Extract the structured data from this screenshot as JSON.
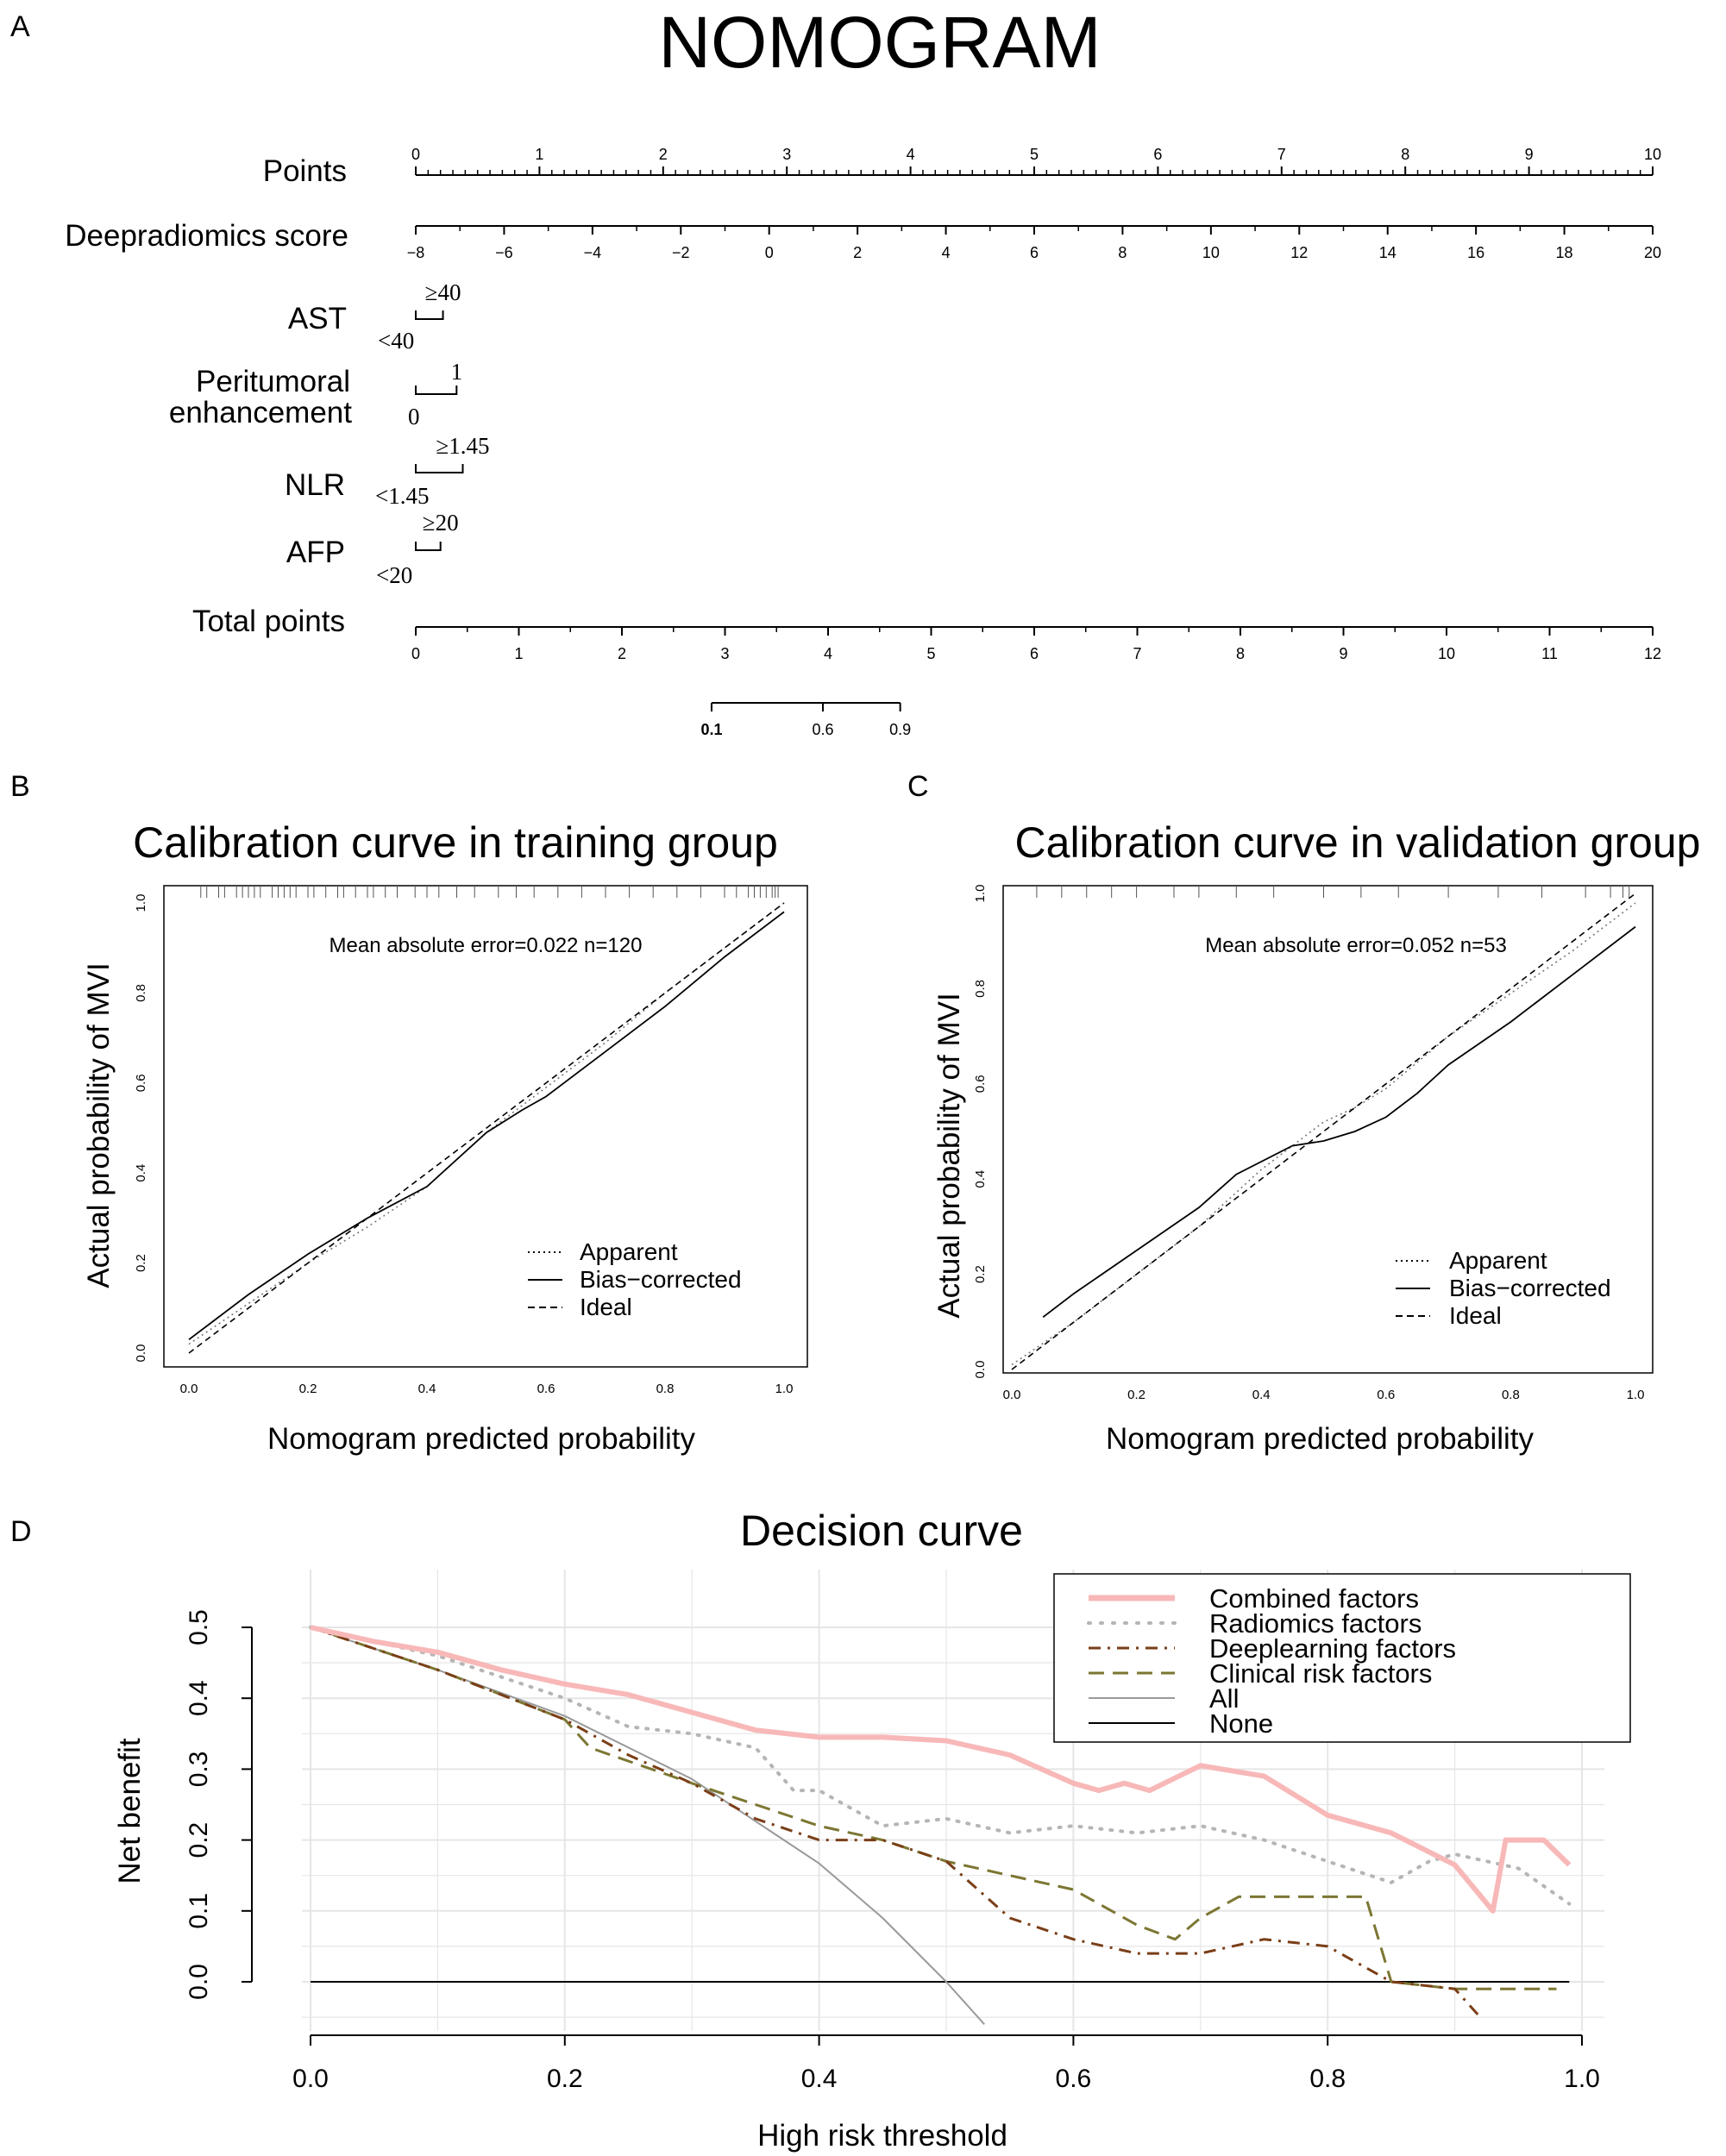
{
  "panel_labels": {
    "a": "A",
    "b": "B",
    "c": "C",
    "d": "D"
  },
  "nomogram": {
    "title": "NOMOGRAM",
    "rows": {
      "points": {
        "label": "Points",
        "min": 0,
        "max": 10,
        "ticks": [
          "0",
          "1",
          "2",
          "3",
          "4",
          "5",
          "6",
          "7",
          "8",
          "9",
          "10"
        ]
      },
      "score": {
        "label": "Deepradiomics score",
        "min": -8,
        "max": 20,
        "ticks": [
          "−8",
          "−6",
          "−4",
          "−2",
          "0",
          "2",
          "4",
          "6",
          "8",
          "10",
          "12",
          "14",
          "16",
          "18",
          "20"
        ]
      },
      "ast": {
        "label": "AST",
        "low": "<40",
        "high": "≥40",
        "points": 0.22
      },
      "peri": {
        "label_line1": "Peritumoral",
        "label_line2": "enhancement",
        "low": "0",
        "high": "1",
        "points": 0.33
      },
      "nlr": {
        "label": "NLR",
        "low": "<1.45",
        "high": "≥1.45",
        "points": 0.38
      },
      "afp": {
        "label": "AFP",
        "low": "<20",
        "high": "≥20",
        "points": 0.2
      },
      "total": {
        "label": "Total points",
        "min": 0,
        "max": 12,
        "ticks": [
          "0",
          "1",
          "2",
          "3",
          "4",
          "5",
          "6",
          "7",
          "8",
          "9",
          "10",
          "11",
          "12"
        ]
      },
      "prob": {
        "ticks": [
          "0.1",
          "0.6",
          "0.9"
        ],
        "total_points": [
          2.87,
          3.95,
          4.7
        ]
      }
    }
  },
  "chart_data": [
    {
      "type": "line",
      "title": "Calibration curve in training group",
      "xlabel": "Nomogram predicted probability",
      "ylabel": "Actual probability of MVI",
      "xlim": [
        0,
        1
      ],
      "ylim": [
        0,
        1
      ],
      "ticks": [
        "0.0",
        "0.2",
        "0.4",
        "0.6",
        "0.8",
        "1.0"
      ],
      "annotation": "Mean absolute error=0.022 n=120",
      "legend": [
        "Apparent",
        "Bias−corrected",
        "Ideal"
      ],
      "series": [
        {
          "name": "Apparent",
          "style": "dotted",
          "x": [
            0.0,
            0.1,
            0.2,
            0.3,
            0.4,
            0.5,
            0.6,
            0.7,
            0.8,
            0.9,
            1.0
          ],
          "y": [
            0.02,
            0.11,
            0.2,
            0.28,
            0.37,
            0.49,
            0.59,
            0.69,
            0.8,
            0.9,
            1.0
          ]
        },
        {
          "name": "Bias−corrected",
          "style": "solid",
          "x": [
            0.0,
            0.1,
            0.2,
            0.3,
            0.4,
            0.5,
            0.56,
            0.6,
            0.7,
            0.8,
            0.9,
            1.0
          ],
          "y": [
            0.03,
            0.13,
            0.22,
            0.3,
            0.37,
            0.49,
            0.54,
            0.57,
            0.67,
            0.77,
            0.88,
            0.98
          ]
        },
        {
          "name": "Ideal",
          "style": "dashed",
          "x": [
            0,
            1
          ],
          "y": [
            0,
            1
          ]
        }
      ],
      "rug": [
        0.02,
        0.03,
        0.05,
        0.06,
        0.08,
        0.09,
        0.1,
        0.11,
        0.12,
        0.14,
        0.15,
        0.16,
        0.17,
        0.18,
        0.2,
        0.21,
        0.23,
        0.25,
        0.26,
        0.28,
        0.3,
        0.31,
        0.33,
        0.35,
        0.38,
        0.4,
        0.42,
        0.45,
        0.48,
        0.52,
        0.55,
        0.58,
        0.62,
        0.66,
        0.7,
        0.74,
        0.78,
        0.82,
        0.86,
        0.9,
        0.92,
        0.94,
        0.95,
        0.96,
        0.97,
        0.98,
        0.985,
        0.99
      ]
    },
    {
      "type": "line",
      "title": "Calibration curve in validation group",
      "xlabel": "Nomogram predicted probability",
      "ylabel": "Actual probability of MVI",
      "xlim": [
        0,
        1
      ],
      "ylim": [
        0,
        1
      ],
      "ticks": [
        "0.0",
        "0.2",
        "0.4",
        "0.6",
        "0.8",
        "1.0"
      ],
      "annotation": "Mean absolute error=0.052 n=53",
      "legend": [
        "Apparent",
        "Bias−corrected",
        "Ideal"
      ],
      "series": [
        {
          "name": "Apparent",
          "style": "dotted",
          "x": [
            0.0,
            0.1,
            0.2,
            0.3,
            0.4,
            0.5,
            0.55,
            0.6,
            0.7,
            0.8,
            0.9,
            1.0
          ],
          "y": [
            0.01,
            0.1,
            0.2,
            0.3,
            0.42,
            0.52,
            0.55,
            0.59,
            0.7,
            0.79,
            0.88,
            0.98
          ]
        },
        {
          "name": "Bias−corrected",
          "style": "solid",
          "x": [
            0.05,
            0.1,
            0.2,
            0.3,
            0.36,
            0.45,
            0.5,
            0.55,
            0.6,
            0.65,
            0.7,
            0.8,
            0.9,
            1.0
          ],
          "y": [
            0.11,
            0.16,
            0.25,
            0.34,
            0.41,
            0.47,
            0.48,
            0.5,
            0.53,
            0.58,
            0.64,
            0.73,
            0.83,
            0.93
          ]
        },
        {
          "name": "Ideal",
          "style": "dashed",
          "x": [
            0,
            1
          ],
          "y": [
            0,
            1
          ]
        }
      ],
      "rug": [
        0.04,
        0.08,
        0.12,
        0.16,
        0.2,
        0.26,
        0.3,
        0.36,
        0.42,
        0.5,
        0.56,
        0.62,
        0.7,
        0.78,
        0.85,
        0.92,
        0.96,
        0.98,
        0.99
      ]
    },
    {
      "type": "line",
      "title": "Decision curve",
      "xlabel": "High risk threshold",
      "ylabel": "Net benefit",
      "xlim": [
        0,
        1
      ],
      "ylim": [
        -0.06,
        0.5
      ],
      "xticks": [
        "0.0",
        "0.2",
        "0.4",
        "0.6",
        "0.8",
        "1.0"
      ],
      "yticks": [
        "0.0",
        "0.1",
        "0.2",
        "0.3",
        "0.4",
        "0.5"
      ],
      "legend": [
        "Combined factors",
        "Radiomics factors",
        "Deeplearning factors",
        "Clinical risk factors",
        "All",
        "None"
      ],
      "series": [
        {
          "name": "Combined factors",
          "color": "#f8b8b8",
          "x": [
            0,
            0.05,
            0.1,
            0.15,
            0.2,
            0.25,
            0.3,
            0.35,
            0.4,
            0.45,
            0.5,
            0.55,
            0.6,
            0.62,
            0.64,
            0.66,
            0.7,
            0.75,
            0.8,
            0.85,
            0.9,
            0.93,
            0.94,
            0.97,
            0.99
          ],
          "y": [
            0.5,
            0.48,
            0.465,
            0.44,
            0.42,
            0.405,
            0.38,
            0.355,
            0.345,
            0.345,
            0.34,
            0.32,
            0.28,
            0.27,
            0.28,
            0.27,
            0.305,
            0.29,
            0.235,
            0.21,
            0.165,
            0.1,
            0.2,
            0.2,
            0.165
          ]
        },
        {
          "name": "Radiomics factors",
          "color": "#b5b5b5",
          "x": [
            0,
            0.1,
            0.2,
            0.25,
            0.3,
            0.35,
            0.38,
            0.4,
            0.45,
            0.5,
            0.55,
            0.6,
            0.65,
            0.7,
            0.75,
            0.8,
            0.85,
            0.88,
            0.9,
            0.95,
            0.99
          ],
          "y": [
            0.5,
            0.46,
            0.4,
            0.36,
            0.35,
            0.33,
            0.27,
            0.27,
            0.22,
            0.23,
            0.21,
            0.22,
            0.21,
            0.22,
            0.2,
            0.17,
            0.14,
            0.17,
            0.18,
            0.16,
            0.11
          ]
        },
        {
          "name": "Deeplearning factors",
          "color": "#7a3e17",
          "x": [
            0,
            0.1,
            0.2,
            0.25,
            0.3,
            0.35,
            0.4,
            0.45,
            0.5,
            0.55,
            0.6,
            0.65,
            0.7,
            0.75,
            0.8,
            0.85,
            0.9,
            0.92
          ],
          "y": [
            0.5,
            0.44,
            0.37,
            0.32,
            0.28,
            0.23,
            0.2,
            0.2,
            0.17,
            0.09,
            0.06,
            0.04,
            0.04,
            0.06,
            0.05,
            0.0,
            -0.01,
            -0.05
          ]
        },
        {
          "name": "Clinical risk factors",
          "color": "#7c7632",
          "x": [
            0,
            0.1,
            0.2,
            0.22,
            0.3,
            0.4,
            0.45,
            0.5,
            0.55,
            0.6,
            0.65,
            0.68,
            0.7,
            0.73,
            0.8,
            0.83,
            0.85,
            0.9,
            0.98
          ],
          "y": [
            0.5,
            0.44,
            0.37,
            0.33,
            0.28,
            0.22,
            0.2,
            0.17,
            0.15,
            0.13,
            0.08,
            0.06,
            0.09,
            0.12,
            0.12,
            0.12,
            0.0,
            -0.01,
            -0.01
          ]
        },
        {
          "name": "All",
          "color": "#999999",
          "x": [
            0,
            0.1,
            0.2,
            0.3,
            0.4,
            0.45,
            0.5,
            0.53
          ],
          "y": [
            0.5,
            0.44,
            0.375,
            0.286,
            0.167,
            0.09,
            0.0,
            -0.06
          ]
        },
        {
          "name": "None",
          "color": "#000000",
          "x": [
            0,
            1
          ],
          "y": [
            0,
            0
          ]
        }
      ]
    }
  ]
}
